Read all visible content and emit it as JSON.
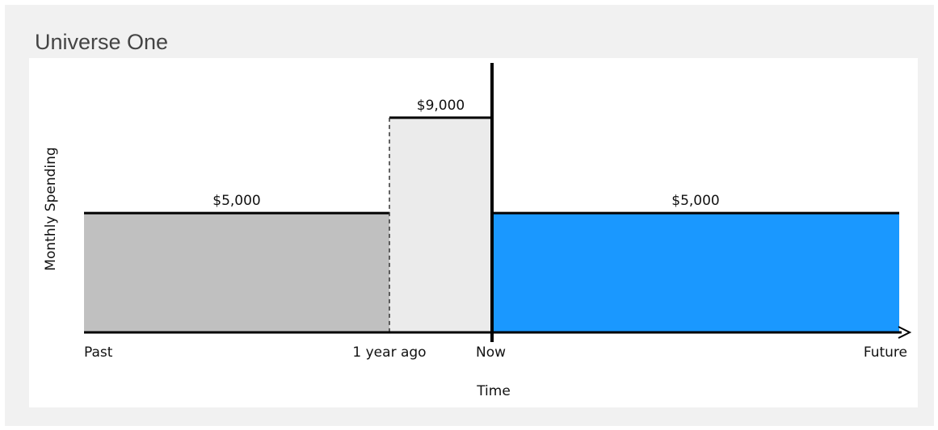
{
  "panel": {
    "title": "Universe One"
  },
  "chart_data": {
    "type": "area",
    "title": "",
    "xlabel": "Time",
    "ylabel": "Monthly Spending",
    "x_ticks": [
      "Past",
      "1 year ago",
      "Now",
      "Future"
    ],
    "ylim": [
      0,
      11500
    ],
    "segments": [
      {
        "from": "Past",
        "to": "1 year ago",
        "value": 5000,
        "label": "$5,000",
        "fill": "#c0c0c0",
        "period": "past"
      },
      {
        "from": "1 year ago",
        "to": "Now",
        "value": 9000,
        "label": "$9,000",
        "fill": "#ebebeb",
        "period": "past"
      },
      {
        "from": "Now",
        "to": "Future",
        "value": 5000,
        "label": "$5,000",
        "fill": "#1a98ff",
        "period": "future"
      }
    ],
    "grid": false,
    "colors": {
      "axis": "#000000",
      "past_fill": "#c0c0c0",
      "recent_fill": "#ebebeb",
      "future_fill": "#1a98ff"
    }
  }
}
